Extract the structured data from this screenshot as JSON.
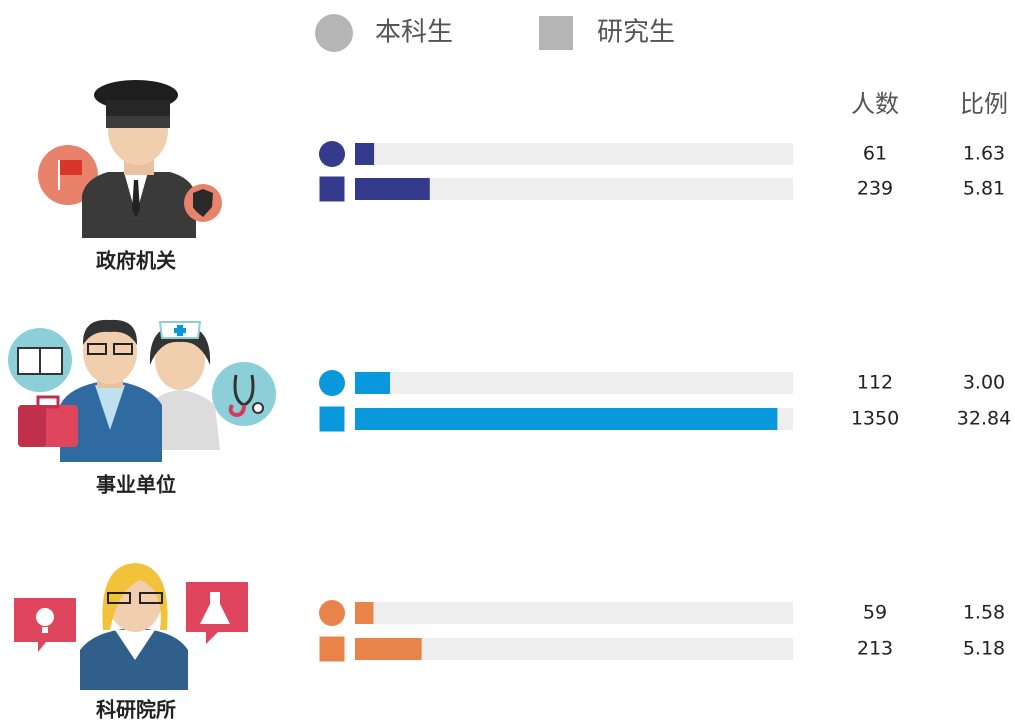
{
  "chart_data": {
    "type": "bar",
    "categories": [
      "政府机关",
      "事业单位",
      "科研院所"
    ],
    "category_colors": [
      "#343a8c",
      "#0a98dc",
      "#e8844a"
    ],
    "columns": [
      "人数",
      "比例"
    ],
    "xlim": [
      0,
      1400
    ],
    "series": [
      {
        "name": "本科生",
        "marker": "circle",
        "color": "#b5b5b5",
        "values": [
          61,
          112,
          59
        ],
        "ratios": [
          1.63,
          3,
          1.58
        ],
        "ratio_labels": [
          "1.63",
          "3.00",
          "1.58"
        ]
      },
      {
        "name": "研究生",
        "marker": "square",
        "color": "#b5b5b5",
        "values": [
          239,
          1350,
          213
        ],
        "ratios": [
          5.81,
          32.84,
          5.18
        ],
        "ratio_labels": [
          "5.81",
          "32.84",
          "5.18"
        ]
      }
    ]
  }
}
